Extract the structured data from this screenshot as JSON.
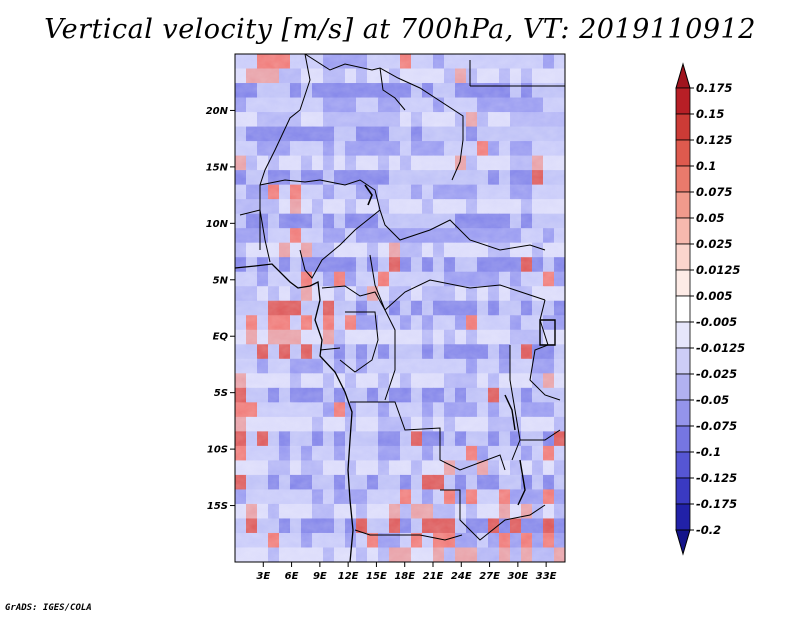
{
  "chart_data": {
    "type": "heatmap",
    "title": "Vertical velocity [m/s] at 700hPa, VT: 2019110912",
    "variable": "Vertical velocity",
    "units": "m/s",
    "level": "700hPa",
    "valid_time": "2019110912",
    "region": "Central Africa",
    "xlim": [
      0,
      35
    ],
    "ylim": [
      -20,
      25
    ],
    "x_ticks": [
      {
        "value": 3,
        "label": "3E"
      },
      {
        "value": 6,
        "label": "6E"
      },
      {
        "value": 9,
        "label": "9E"
      },
      {
        "value": 12,
        "label": "12E"
      },
      {
        "value": 15,
        "label": "15E"
      },
      {
        "value": 18,
        "label": "18E"
      },
      {
        "value": 21,
        "label": "21E"
      },
      {
        "value": 24,
        "label": "24E"
      },
      {
        "value": 27,
        "label": "27E"
      },
      {
        "value": 30,
        "label": "30E"
      },
      {
        "value": 33,
        "label": "33E"
      }
    ],
    "y_ticks": [
      {
        "value": 20,
        "label": "20N"
      },
      {
        "value": 15,
        "label": "15N"
      },
      {
        "value": 10,
        "label": "10N"
      },
      {
        "value": 5,
        "label": "5N"
      },
      {
        "value": 0,
        "label": "EQ"
      },
      {
        "value": -5,
        "label": "5S"
      },
      {
        "value": -10,
        "label": "10S"
      },
      {
        "value": -15,
        "label": "15S"
      }
    ],
    "colorbar": {
      "labels": [
        "0.175",
        "0.15",
        "0.125",
        "0.1",
        "0.075",
        "0.05",
        "0.025",
        "0.0125",
        "0.005",
        "-0.005",
        "-0.0125",
        "-0.025",
        "-0.05",
        "-0.075",
        "-0.1",
        "-0.125",
        "-0.175",
        "-0.2"
      ],
      "colors": [
        "#a0141e",
        "#b71f26",
        "#cc3b36",
        "#de5a4e",
        "#e97a6c",
        "#f19a8c",
        "#f7b9ae",
        "#fbd5cd",
        "#fdebe6",
        "#ffffff",
        "#e6e6fb",
        "#cdcdf7",
        "#b1b1f1",
        "#9494eb",
        "#7676e2",
        "#5656d4",
        "#3a3ac2",
        "#2121a8",
        "#14148a"
      ]
    },
    "field_rows": [
      "..+++...----...+..-.........-.",
      ".+++--..--.-..-....-+-..-.-...",
      "--...-.---------.-..-----.-...",
      "-.......---..--...-...------..",
      "..----..-------.-...-+-..-----",
      ".--------..---..-....-........",
      "..---...-.-----.---...+-.--...",
      "+-.-..-.-.-..-.-....+-...--+..",
      "-..--.--.-----.........-.--+..",
      ".--+.+..-..--...-.----...--...",
      "----.+.-..-..-...-...-....-...",
      ".--.---.-.---.......-----.-...",
      "---..+..--.---------------..-.",
      "-...+.+--...-.+--.-....--..-..",
      "-.-.-.-----.-.+-.-.-..----+-.-",
      "..-...+.-+-..+.....-----.-..+-",
      "--.-.-+..-.-+.--.---.-.-.--...",
      "...+++..+..-..-.-.----.-..-..-",
      ".+.++.+.+.+--..-.-..-+...-..--",
      ".+.+++..+-.......-.-.-...---..",
      "..+.+.+..-.-.-...-.----.-.+--.",
      "..-..---.-.-.........-..-..--.",
      "+....-..-.-..-.-...---.-...-+.",
      "+..-.---.-..-.--.--.-..+..-...",
      "++......-+-..-...-.---.-..---.",
      "+......-..-..---.-.-...---...-",
      "+.+.-..-.-...--.+--.-..-.-..-+",
      "+...-.-..-...--..-...+-...-.+.",
      "...--.--..-..-..-..+--+-.-.-.-",
      "+..-.--..-..-..-.++.-.--..-.-.",
      "-......-.---...+.-.+-+..+---+-",
      ".+.-...--..-..+-++--.-..+.+-.-",
      ".+..-.---.-+..+-.+++.--+-+--+-",
      "...+..-...-.+--.+.++--.-+-+-+-",
      "...-....-..-.-++..+-++--+-+--+"
    ],
    "annotation": "GrADS: IGES/COLA"
  }
}
